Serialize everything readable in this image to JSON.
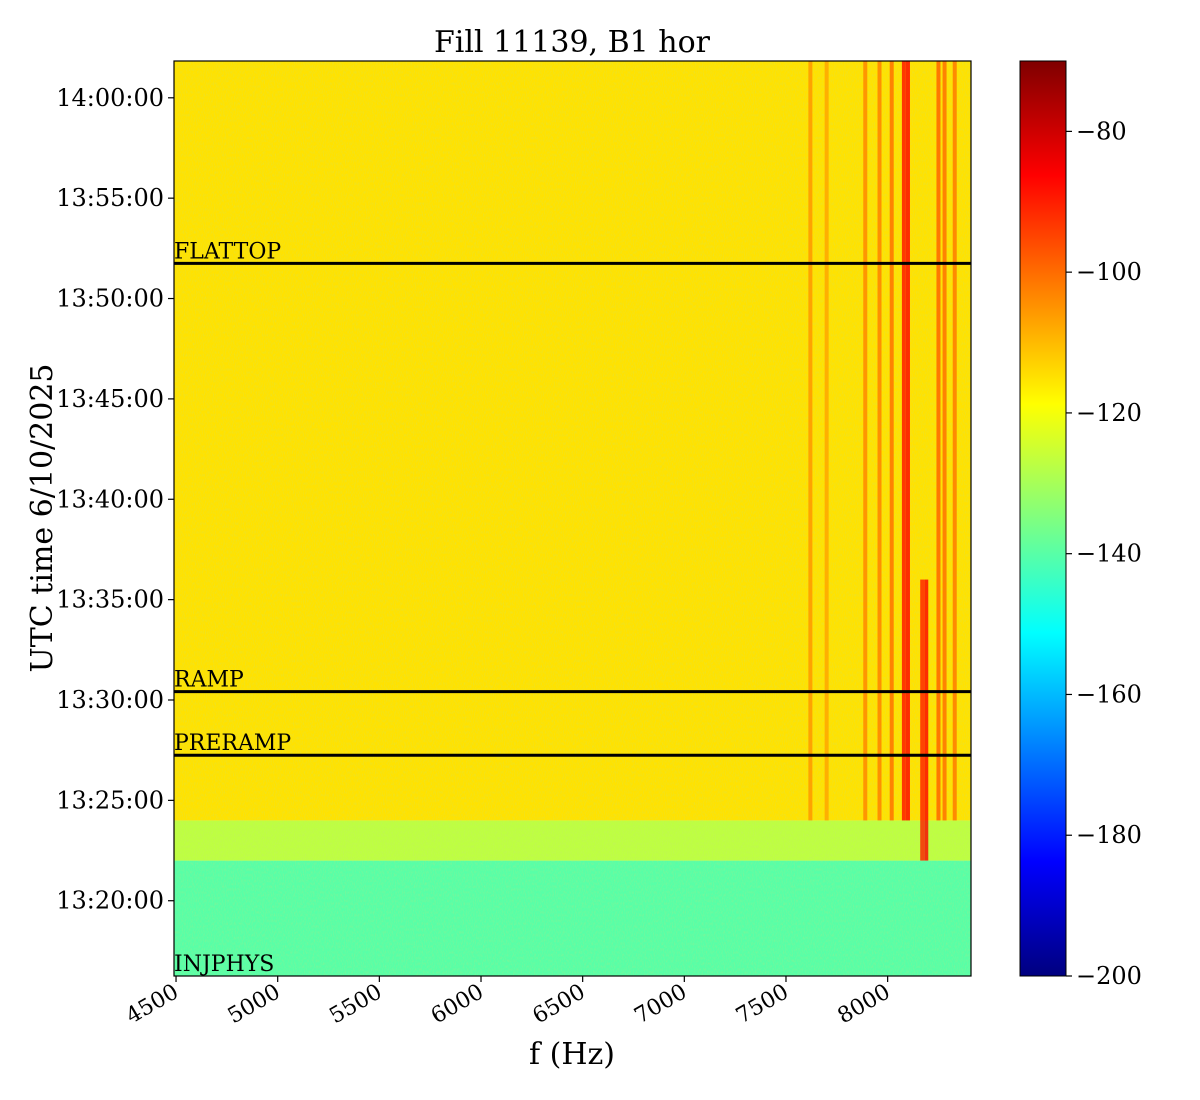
{
  "chart_data": {
    "type": "heatmap",
    "title": "Fill 11139, B1 hor",
    "xlabel": "f (Hz)",
    "ylabel": "UTC time 6/10/2025",
    "xlim": [
      4490,
      8410
    ],
    "ylim": [
      "13:16:15",
      "14:01:50"
    ],
    "x_ticks": [
      4500,
      5000,
      5500,
      6000,
      6500,
      7000,
      7500,
      8000
    ],
    "x_tick_labels": [
      "4500",
      "5000",
      "5500",
      "6000",
      "6500",
      "7000",
      "7500",
      "8000"
    ],
    "y_ticks": [
      "13:20:00",
      "13:25:00",
      "13:30:00",
      "13:35:00",
      "13:40:00",
      "13:45:00",
      "13:50:00",
      "13:55:00",
      "14:00:00"
    ],
    "y_tick_labels": [
      "13:20:00",
      "13:25:00",
      "13:30:00",
      "13:35:00",
      "13:40:00",
      "13:45:00",
      "13:50:00",
      "13:55:00",
      "14:00:00"
    ],
    "colorbar": {
      "colormap": "jet",
      "range": [
        -200,
        -70
      ],
      "ticks": [
        -80,
        -100,
        -120,
        -140,
        -160,
        -180,
        -200
      ],
      "tick_labels": [
        "−80",
        "−100",
        "−120",
        "−140",
        "−160",
        "−180",
        "−200"
      ]
    },
    "events": [
      {
        "label": "FLATTOP",
        "time": "13:51:45"
      },
      {
        "label": "RAMP",
        "time": "13:30:25"
      },
      {
        "label": "PRERAMP",
        "time": "13:27:15"
      },
      {
        "label": "INJPHYS",
        "time": "13:16:15"
      }
    ],
    "regions": [
      {
        "from": "13:16:15",
        "to": "13:22:00",
        "level_db": -140
      },
      {
        "from": "13:22:00",
        "to": "13:24:00",
        "level_db": -127
      },
      {
        "from": "13:24:00",
        "to": "14:01:50",
        "level_db": -115
      }
    ],
    "lines_hz": [
      {
        "f": 7620,
        "from": "13:24:00",
        "to": "14:01:50",
        "level_db": -105
      },
      {
        "f": 7700,
        "from": "13:24:00",
        "to": "14:01:50",
        "level_db": -107
      },
      {
        "f": 7890,
        "from": "13:24:00",
        "to": "14:01:50",
        "level_db": -103
      },
      {
        "f": 7960,
        "from": "13:24:00",
        "to": "14:01:50",
        "level_db": -102
      },
      {
        "f": 8020,
        "from": "13:24:00",
        "to": "14:01:50",
        "level_db": -100
      },
      {
        "f": 8080,
        "from": "13:24:00",
        "to": "14:01:50",
        "level_db": -88
      },
      {
        "f": 8100,
        "from": "13:24:00",
        "to": "14:01:50",
        "level_db": -86
      },
      {
        "f": 8170,
        "from": "13:22:00",
        "to": "13:36:00",
        "level_db": -90
      },
      {
        "f": 8190,
        "from": "13:22:00",
        "to": "13:36:00",
        "level_db": -86
      },
      {
        "f": 8250,
        "from": "13:24:00",
        "to": "14:01:50",
        "level_db": -98
      },
      {
        "f": 8280,
        "from": "13:24:00",
        "to": "14:01:50",
        "level_db": -100
      },
      {
        "f": 8330,
        "from": "13:24:00",
        "to": "14:01:50",
        "level_db": -101
      }
    ]
  }
}
